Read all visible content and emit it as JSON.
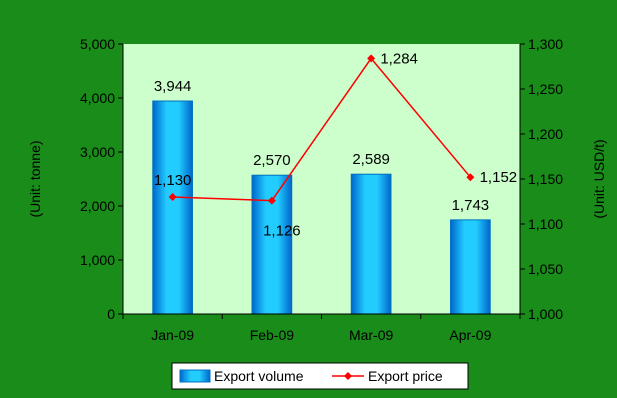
{
  "chart_data": {
    "type": "bar+line",
    "categories": [
      "Jan-09",
      "Feb-09",
      "Mar-09",
      "Apr-09"
    ],
    "series": [
      {
        "name": "Export volume",
        "type": "bar",
        "axis": "left",
        "values": [
          3944,
          2570,
          2589,
          1743
        ],
        "labels": [
          "3,944",
          "2,570",
          "2,589",
          "1,743"
        ]
      },
      {
        "name": "Export price",
        "type": "line",
        "axis": "right",
        "values": [
          1130,
          1126,
          1284,
          1152
        ],
        "labels": [
          "1,130",
          "1,126",
          "1,284",
          "1,152"
        ]
      }
    ],
    "ylabel_left": "(Unit: tonne)",
    "ylabel_right": "(Unit: USD/t)",
    "ylim_left": [
      0,
      5000
    ],
    "ylim_right": [
      1000,
      1300
    ],
    "yticks_left": [
      "0",
      "1,000",
      "2,000",
      "3,000",
      "4,000",
      "5,000"
    ],
    "yticks_right": [
      "1,000",
      "1,050",
      "1,100",
      "1,150",
      "1,200",
      "1,250",
      "1,300"
    ],
    "legend_position": "bottom",
    "grid": false,
    "colors": {
      "outer_bg": "#1a8c1a",
      "plot_bg": "#ccffcc",
      "bar_fill": "#00b0f0",
      "bar_edge": "#0070c0",
      "line": "#ff0000",
      "legend_bg": "#ffffff"
    }
  }
}
